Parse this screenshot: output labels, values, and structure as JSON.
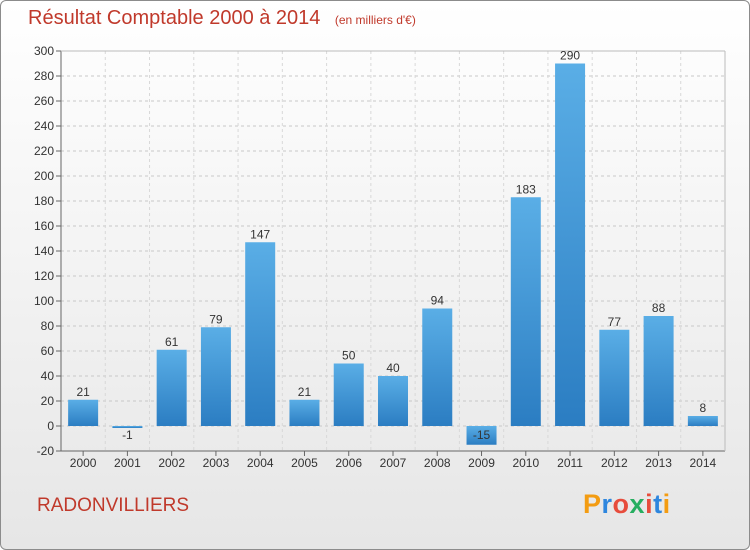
{
  "header": {
    "title": "Résultat Comptable 2000 à 2014",
    "subtitle": "(en milliers d'€)"
  },
  "footer": {
    "place": "RADONVILLIERS",
    "logo": "Proxiti"
  },
  "colors": {
    "bar_top": "#5aaee6",
    "bar_bottom": "#2b7dc2",
    "title": "#c0392b",
    "logo_letters": [
      "#f39c12",
      "#2e86de",
      "#e74c3c",
      "#27ae60",
      "#e74c3c",
      "#2e86de",
      "#f39c12"
    ]
  },
  "chart_data": {
    "type": "bar",
    "title": "Résultat Comptable 2000 à 2014",
    "xlabel": "",
    "ylabel": "",
    "categories": [
      "2000",
      "2001",
      "2002",
      "2003",
      "2004",
      "2005",
      "2006",
      "2007",
      "2008",
      "2009",
      "2010",
      "2011",
      "2012",
      "2013",
      "2014"
    ],
    "values": [
      21,
      -1,
      61,
      79,
      147,
      21,
      50,
      40,
      94,
      -15,
      183,
      290,
      77,
      88,
      8
    ],
    "labels": [
      "21",
      "-1",
      "61",
      "79",
      "147",
      "21",
      "50",
      "40",
      "94",
      "-15",
      "183",
      "290",
      "77",
      "88",
      "8"
    ],
    "ylim": [
      -20,
      300
    ],
    "yticks": [
      -20,
      0,
      20,
      40,
      60,
      80,
      100,
      120,
      140,
      160,
      180,
      200,
      220,
      240,
      260,
      280,
      300
    ],
    "grid": "horizontal-dashed",
    "legend": "none"
  }
}
